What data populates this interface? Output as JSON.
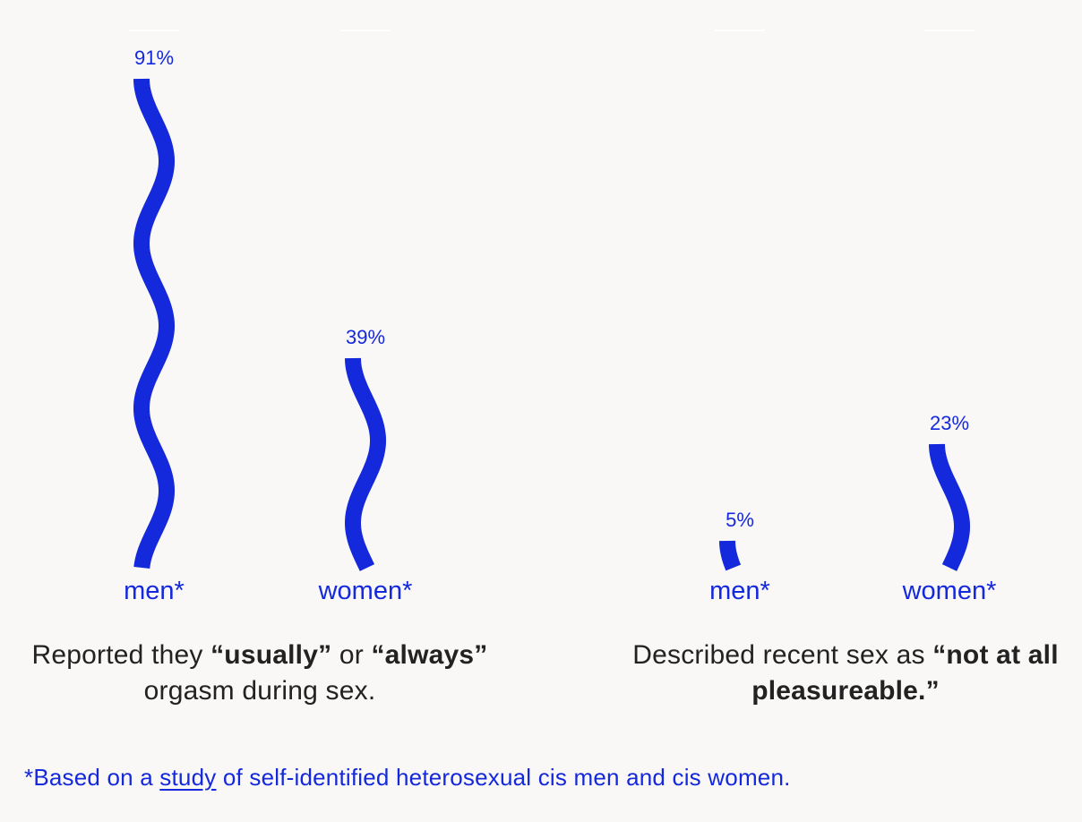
{
  "colors": {
    "accent": "#1428dc",
    "background": "#faf8f7",
    "text": "#222222"
  },
  "chart_data": [
    {
      "type": "bar",
      "style": "wavy",
      "categories": [
        "men*",
        "women*"
      ],
      "values": [
        91,
        39
      ],
      "value_labels": [
        "91%",
        "39%"
      ],
      "ylim": [
        0,
        100
      ],
      "caption": {
        "pre": "Reported they ",
        "bold1": "“usually”",
        "mid": " or ",
        "bold2": "“always”",
        "post": " orgasm during sex."
      }
    },
    {
      "type": "bar",
      "style": "wavy",
      "categories": [
        "men*",
        "women*"
      ],
      "values": [
        5,
        23
      ],
      "value_labels": [
        "5%",
        "23%"
      ],
      "ylim": [
        0,
        100
      ],
      "caption": {
        "pre": "Described recent sex as ",
        "bold": "“not at all pleasureable.”"
      }
    }
  ],
  "footnote": {
    "pre": "*Based on a ",
    "link": "study",
    "post": " of self-identified heterosexual cis men and cis women."
  }
}
